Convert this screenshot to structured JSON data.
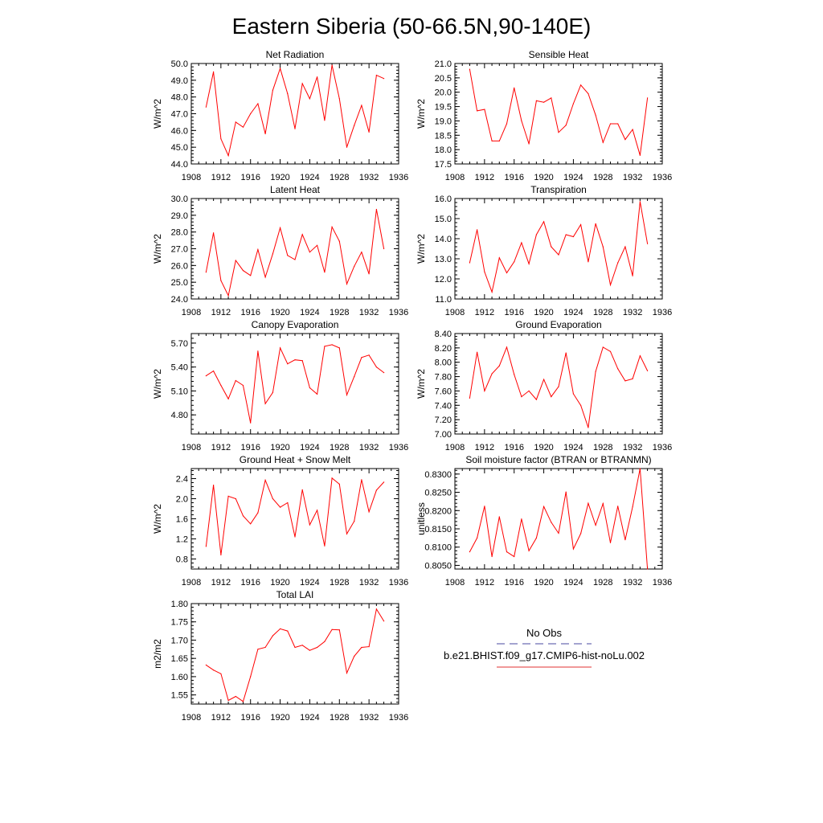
{
  "title": "Eastern Siberia (50-66.5N,90-140E)",
  "legend": {
    "entries": [
      {
        "label": "No Obs",
        "color": "#4a4aa0",
        "dash": "dashed"
      },
      {
        "label": "b.e21.BHIST.f09_g17.CMIP6-hist-noLu.002",
        "color": "#e03030",
        "dash": "solid"
      }
    ]
  },
  "colors": {
    "series": "#ff0000",
    "axis": "#000000"
  },
  "chart_data": [
    {
      "type": "line",
      "title": "Net Radiation",
      "ylabel": "W/m^2",
      "xlim": [
        1908,
        1936
      ],
      "ylim": [
        44.0,
        50.0
      ],
      "xticks": [
        "1908",
        "1912",
        "1916",
        "1920",
        "1924",
        "1928",
        "1932",
        "1936"
      ],
      "yticks": [
        "44.0",
        "45.0",
        "46.0",
        "47.0",
        "48.0",
        "49.0",
        "50.0"
      ],
      "x": [
        1910,
        1911,
        1912,
        1913,
        1914,
        1915,
        1916,
        1917,
        1918,
        1919,
        1920,
        1921,
        1922,
        1923,
        1924,
        1925,
        1926,
        1927,
        1928,
        1929,
        1930,
        1931,
        1932,
        1933,
        1934
      ],
      "series": [
        {
          "values": [
            47.4,
            49.5,
            45.5,
            44.5,
            46.5,
            46.2,
            47.0,
            47.6,
            45.8,
            48.4,
            49.7,
            48.2,
            46.1,
            48.8,
            47.9,
            49.2,
            46.6,
            49.9,
            47.9,
            45.0,
            46.3,
            47.5,
            45.9,
            49.3,
            49.1
          ]
        }
      ]
    },
    {
      "type": "line",
      "title": "Sensible Heat",
      "ylabel": "W/m^2",
      "xlim": [
        1908,
        1936
      ],
      "ylim": [
        17.5,
        21.0
      ],
      "xticks": [
        "1908",
        "1912",
        "1916",
        "1920",
        "1924",
        "1928",
        "1932",
        "1936"
      ],
      "yticks": [
        "17.5",
        "18.0",
        "18.5",
        "19.0",
        "19.5",
        "20.0",
        "20.5",
        "21.0"
      ],
      "x": [
        1910,
        1911,
        1912,
        1913,
        1914,
        1915,
        1916,
        1917,
        1918,
        1919,
        1920,
        1921,
        1922,
        1923,
        1924,
        1925,
        1926,
        1927,
        1928,
        1929,
        1930,
        1931,
        1932,
        1933,
        1934
      ],
      "series": [
        {
          "values": [
            20.8,
            19.35,
            19.4,
            18.3,
            18.3,
            18.9,
            20.15,
            19.0,
            18.2,
            19.7,
            19.65,
            19.8,
            18.6,
            18.85,
            19.6,
            20.25,
            19.95,
            19.2,
            18.25,
            18.9,
            18.9,
            18.35,
            18.7,
            17.8,
            19.8
          ]
        }
      ]
    },
    {
      "type": "line",
      "title": "Latent Heat",
      "ylabel": "W/m^2",
      "xlim": [
        1908,
        1936
      ],
      "ylim": [
        24.0,
        30.0
      ],
      "xticks": [
        "1908",
        "1912",
        "1916",
        "1920",
        "1924",
        "1928",
        "1932",
        "1936"
      ],
      "yticks": [
        "24.0",
        "25.0",
        "26.0",
        "27.0",
        "28.0",
        "29.0",
        "30.0"
      ],
      "x": [
        1910,
        1911,
        1912,
        1913,
        1914,
        1915,
        1916,
        1917,
        1918,
        1919,
        1920,
        1921,
        1922,
        1923,
        1924,
        1925,
        1926,
        1927,
        1928,
        1929,
        1930,
        1931,
        1932,
        1933,
        1934
      ],
      "series": [
        {
          "values": [
            25.6,
            27.95,
            25.1,
            24.2,
            26.3,
            25.7,
            25.4,
            26.95,
            25.3,
            26.7,
            28.25,
            26.6,
            26.35,
            27.85,
            26.8,
            27.2,
            25.6,
            28.3,
            27.45,
            24.9,
            25.95,
            26.8,
            25.5,
            29.35,
            27.0
          ]
        }
      ]
    },
    {
      "type": "line",
      "title": "Transpiration",
      "ylabel": "W/m^2",
      "xlim": [
        1908,
        1936
      ],
      "ylim": [
        11.0,
        16.0
      ],
      "xticks": [
        "1908",
        "1912",
        "1916",
        "1920",
        "1924",
        "1928",
        "1932",
        "1936"
      ],
      "yticks": [
        "11.0",
        "12.0",
        "13.0",
        "14.0",
        "15.0",
        "16.0"
      ],
      "x": [
        1910,
        1911,
        1912,
        1913,
        1914,
        1915,
        1916,
        1917,
        1918,
        1919,
        1920,
        1921,
        1922,
        1923,
        1924,
        1925,
        1926,
        1927,
        1928,
        1929,
        1930,
        1931,
        1932,
        1933,
        1934
      ],
      "series": [
        {
          "values": [
            12.8,
            14.45,
            12.35,
            11.35,
            13.05,
            12.3,
            12.85,
            13.8,
            12.75,
            14.2,
            14.85,
            13.6,
            13.2,
            14.2,
            14.1,
            14.7,
            12.85,
            14.75,
            13.6,
            11.7,
            12.8,
            13.6,
            12.15,
            15.85,
            13.75
          ]
        }
      ]
    },
    {
      "type": "line",
      "title": "Canopy Evaporation",
      "ylabel": "W/m^2",
      "xlim": [
        1908,
        1936
      ],
      "ylim": [
        4.56,
        5.82
      ],
      "xticks": [
        "1908",
        "1912",
        "1916",
        "1920",
        "1924",
        "1928",
        "1932",
        "1936"
      ],
      "yticks": [
        "4.80",
        "5.10",
        "5.40",
        "5.70"
      ],
      "x": [
        1910,
        1911,
        1912,
        1913,
        1914,
        1915,
        1916,
        1917,
        1918,
        1919,
        1920,
        1921,
        1922,
        1923,
        1924,
        1925,
        1926,
        1927,
        1928,
        1929,
        1930,
        1931,
        1932,
        1933,
        1934
      ],
      "series": [
        {
          "values": [
            5.29,
            5.35,
            5.17,
            5.0,
            5.23,
            5.17,
            4.7,
            5.6,
            4.94,
            5.08,
            5.64,
            5.44,
            5.49,
            5.48,
            5.14,
            5.06,
            5.66,
            5.68,
            5.64,
            5.05,
            5.28,
            5.52,
            5.55,
            5.4,
            5.33
          ]
        }
      ]
    },
    {
      "type": "line",
      "title": "Ground Evaporation",
      "ylabel": "W/m^2",
      "xlim": [
        1908,
        1936
      ],
      "ylim": [
        7.0,
        8.4
      ],
      "xticks": [
        "1908",
        "1912",
        "1916",
        "1920",
        "1924",
        "1928",
        "1932",
        "1936"
      ],
      "yticks": [
        "7.00",
        "7.20",
        "7.40",
        "7.60",
        "7.80",
        "8.00",
        "8.20",
        "8.40"
      ],
      "x": [
        1910,
        1911,
        1912,
        1913,
        1914,
        1915,
        1916,
        1917,
        1918,
        1919,
        1920,
        1921,
        1922,
        1923,
        1924,
        1925,
        1926,
        1927,
        1928,
        1929,
        1930,
        1931,
        1932,
        1933,
        1934
      ],
      "series": [
        {
          "values": [
            7.5,
            8.14,
            7.6,
            7.84,
            7.95,
            8.21,
            7.83,
            7.52,
            7.6,
            7.48,
            7.76,
            7.52,
            7.66,
            8.13,
            7.56,
            7.4,
            7.09,
            7.87,
            8.21,
            8.15,
            7.91,
            7.74,
            7.77,
            8.09,
            7.88
          ]
        }
      ]
    },
    {
      "type": "line",
      "title": "Ground Heat + Snow Melt",
      "ylabel": "W/m^2",
      "xlim": [
        1908,
        1936
      ],
      "ylim": [
        0.6,
        2.6
      ],
      "xticks": [
        "1908",
        "1912",
        "1916",
        "1920",
        "1924",
        "1928",
        "1932",
        "1936"
      ],
      "yticks": [
        "0.8",
        "1.2",
        "1.6",
        "2.0",
        "2.4"
      ],
      "x": [
        1910,
        1911,
        1912,
        1913,
        1914,
        1915,
        1916,
        1917,
        1918,
        1919,
        1920,
        1921,
        1922,
        1923,
        1924,
        1925,
        1926,
        1927,
        1928,
        1929,
        1930,
        1931,
        1932,
        1933,
        1934
      ],
      "series": [
        {
          "values": [
            1.05,
            2.27,
            0.88,
            2.05,
            2.0,
            1.66,
            1.5,
            1.72,
            2.37,
            2.0,
            1.83,
            1.92,
            1.24,
            2.18,
            1.48,
            1.77,
            1.06,
            2.41,
            2.29,
            1.3,
            1.55,
            2.38,
            1.74,
            2.17,
            2.33
          ]
        }
      ]
    },
    {
      "type": "line",
      "title": "Soil moisture factor (BTRAN or BTRANMN)",
      "ylabel": "unitless",
      "xlim": [
        1908,
        1936
      ],
      "ylim": [
        0.804,
        0.8315
      ],
      "xticks": [
        "1908",
        "1912",
        "1916",
        "1920",
        "1924",
        "1928",
        "1932",
        "1936"
      ],
      "yticks": [
        "0.8050",
        "0.8100",
        "0.8150",
        "0.8200",
        "0.8250",
        "0.8300"
      ],
      "x": [
        1910,
        1911,
        1912,
        1913,
        1914,
        1915,
        1916,
        1917,
        1918,
        1919,
        1920,
        1921,
        1922,
        1923,
        1924,
        1925,
        1926,
        1927,
        1928,
        1929,
        1930,
        1931,
        1932,
        1933,
        1934
      ],
      "series": [
        {
          "values": [
            0.8087,
            0.8125,
            0.8212,
            0.8074,
            0.8183,
            0.8087,
            0.8074,
            0.8177,
            0.809,
            0.8125,
            0.8211,
            0.8168,
            0.8138,
            0.8251,
            0.8095,
            0.8137,
            0.822,
            0.816,
            0.8219,
            0.8112,
            0.8212,
            0.812,
            0.821,
            0.8315,
            0.804
          ]
        }
      ]
    },
    {
      "type": "line",
      "title": "Total LAI",
      "ylabel": "m2/m2",
      "xlim": [
        1908,
        1936
      ],
      "ylim": [
        1.525,
        1.8
      ],
      "xticks": [
        "1908",
        "1912",
        "1916",
        "1920",
        "1924",
        "1928",
        "1932",
        "1936"
      ],
      "yticks": [
        "1.55",
        "1.60",
        "1.65",
        "1.70",
        "1.75",
        "1.80"
      ],
      "x": [
        1910,
        1911,
        1912,
        1913,
        1914,
        1915,
        1916,
        1917,
        1918,
        1919,
        1920,
        1921,
        1922,
        1923,
        1924,
        1925,
        1926,
        1927,
        1928,
        1929,
        1930,
        1931,
        1932,
        1933,
        1934
      ],
      "series": [
        {
          "values": [
            1.632,
            1.618,
            1.608,
            1.535,
            1.546,
            1.532,
            1.6,
            1.675,
            1.68,
            1.712,
            1.731,
            1.725,
            1.68,
            1.686,
            1.672,
            1.68,
            1.696,
            1.729,
            1.728,
            1.61,
            1.656,
            1.68,
            1.682,
            1.785,
            1.752
          ]
        }
      ]
    }
  ]
}
